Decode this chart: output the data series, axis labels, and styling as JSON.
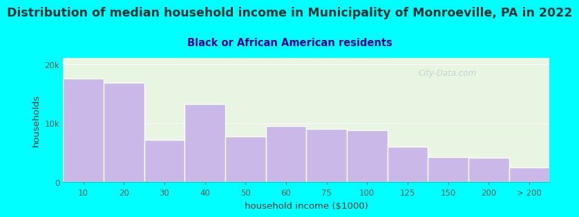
{
  "title": "Distribution of median household income in Municipality of Monroeville, PA in 2022",
  "subtitle": "Black or African American residents",
  "xlabel": "household income ($1000)",
  "ylabel": "households",
  "bar_labels": [
    "10",
    "20",
    "30",
    "40",
    "50",
    "60",
    "75",
    "100",
    "125",
    "150",
    "200",
    "> 200"
  ],
  "bar_values": [
    17500,
    16800,
    7200,
    13200,
    7800,
    9500,
    9000,
    8800,
    6000,
    4200,
    4100,
    2500
  ],
  "bar_color": "#c9b8e8",
  "bar_edgecolor": "#ffffff",
  "background_color": "#00ffff",
  "plot_bg_color": "#e8f5e2",
  "ylim": [
    0,
    21000
  ],
  "yticks": [
    0,
    10000,
    20000
  ],
  "ytick_labels": [
    "0",
    "10k",
    "20k"
  ],
  "title_fontsize": 12.5,
  "subtitle_fontsize": 10.5,
  "label_fontsize": 9.5,
  "tick_fontsize": 8.5,
  "title_color": "#003333",
  "subtitle_color": "#000099",
  "axis_color": "#00cccc",
  "watermark_text": "City-Data.com",
  "watermark_color": "#b0c8c8",
  "watermark_alpha": 0.7
}
